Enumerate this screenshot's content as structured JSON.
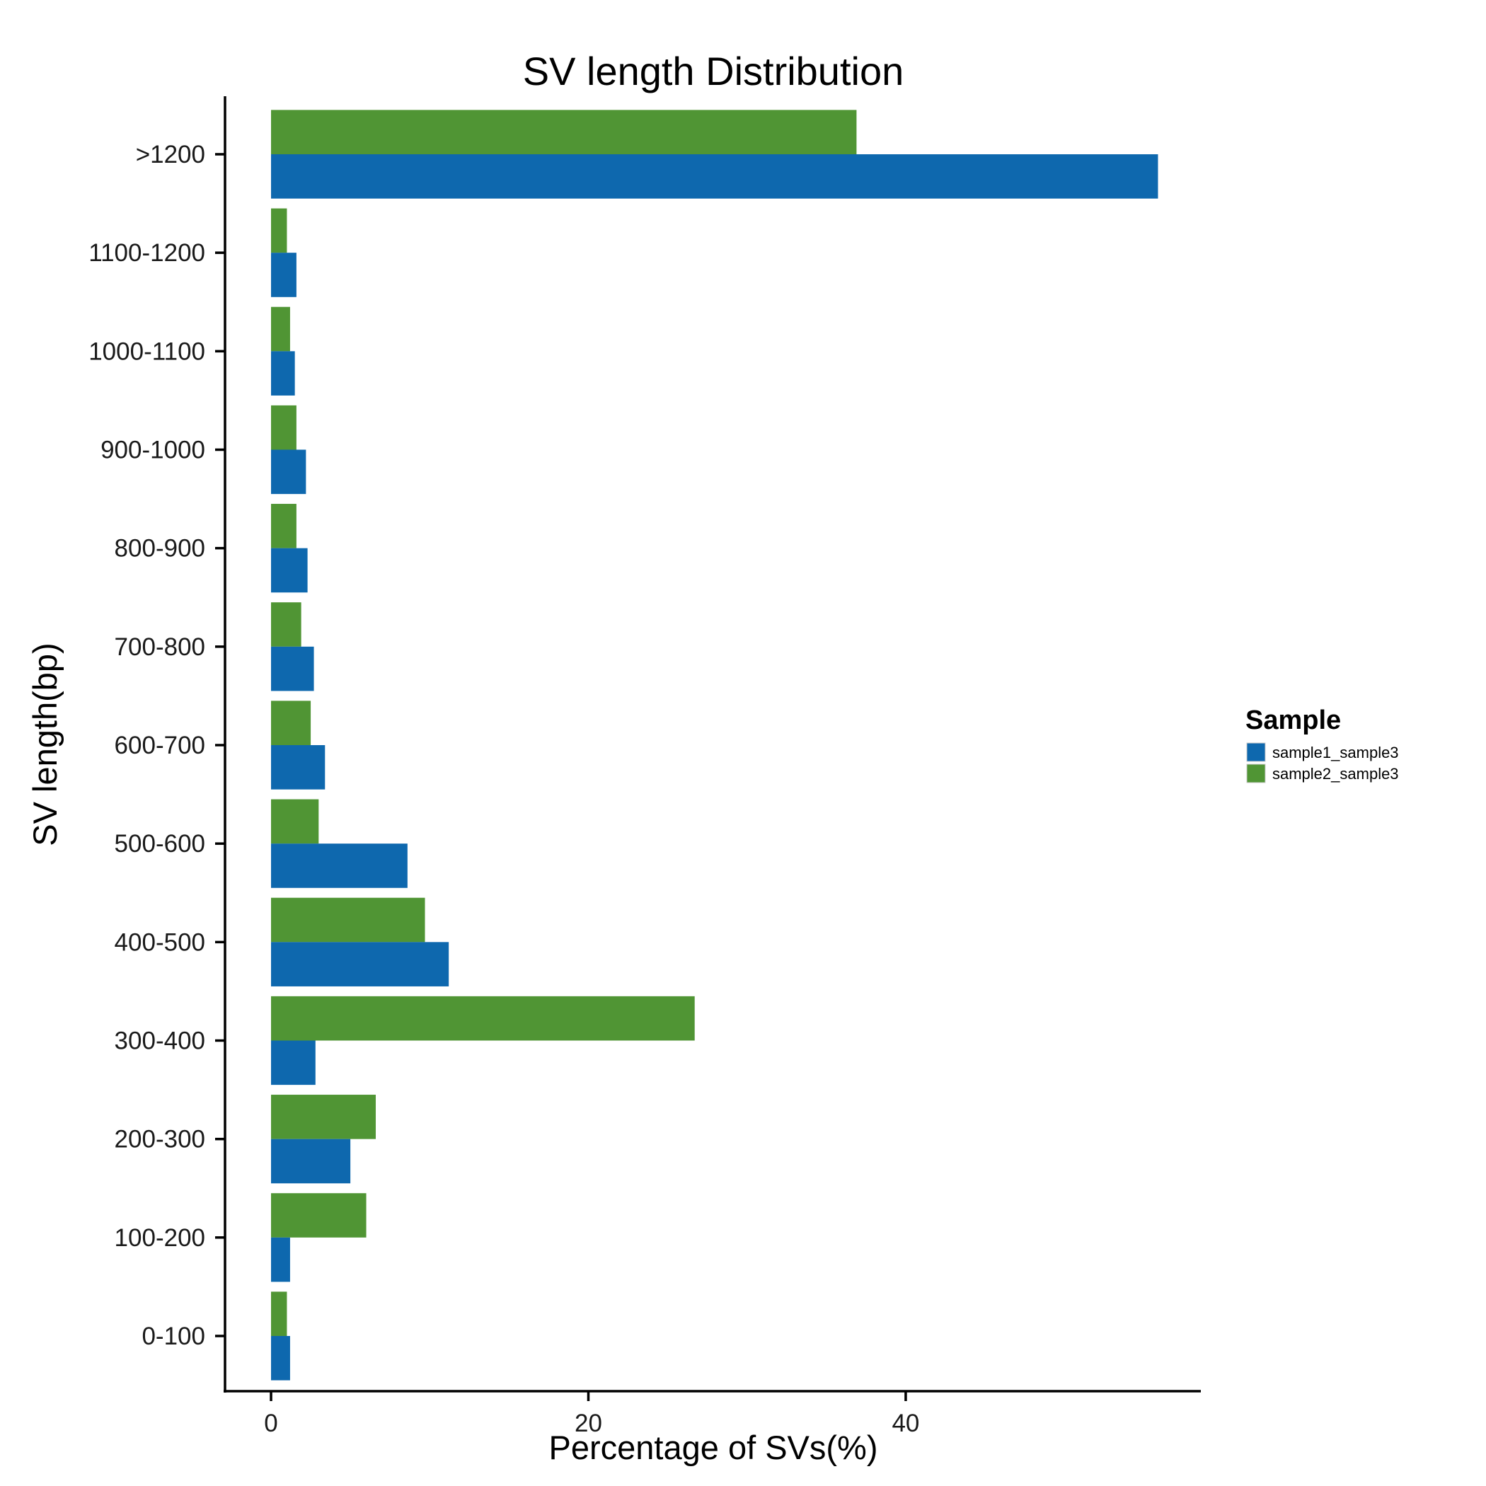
{
  "chart_data": {
    "type": "bar",
    "orientation": "horizontal",
    "title": "SV length Distribution",
    "xlabel": "Percentage of SVs(%)",
    "ylabel": "SV length(bp)",
    "xlim": [
      -2.9,
      58.6
    ],
    "x_ticks": [
      "0",
      "20",
      "40"
    ],
    "x_tick_values": [
      0,
      20,
      40
    ],
    "categories": [
      "0-100",
      "100-200",
      "200-300",
      "300-400",
      "400-500",
      "500-600",
      "600-700",
      "700-800",
      "800-900",
      "900-1000",
      "1000-1100",
      "1100-1200",
      ">1200"
    ],
    "series": [
      {
        "name": "sample1_sample3",
        "color": "#0E68AE",
        "values": [
          1.2,
          1.2,
          5.0,
          2.8,
          11.2,
          8.6,
          3.4,
          2.7,
          2.3,
          2.2,
          1.5,
          1.6,
          55.9
        ]
      },
      {
        "name": "sample2_sample3",
        "color": "#509534",
        "values": [
          1.0,
          6.0,
          6.6,
          26.7,
          9.7,
          3.0,
          2.5,
          1.9,
          1.6,
          1.6,
          1.2,
          1.0,
          36.9
        ]
      }
    ],
    "grid": false,
    "legend": {
      "title": "Sample",
      "position": "right"
    }
  }
}
